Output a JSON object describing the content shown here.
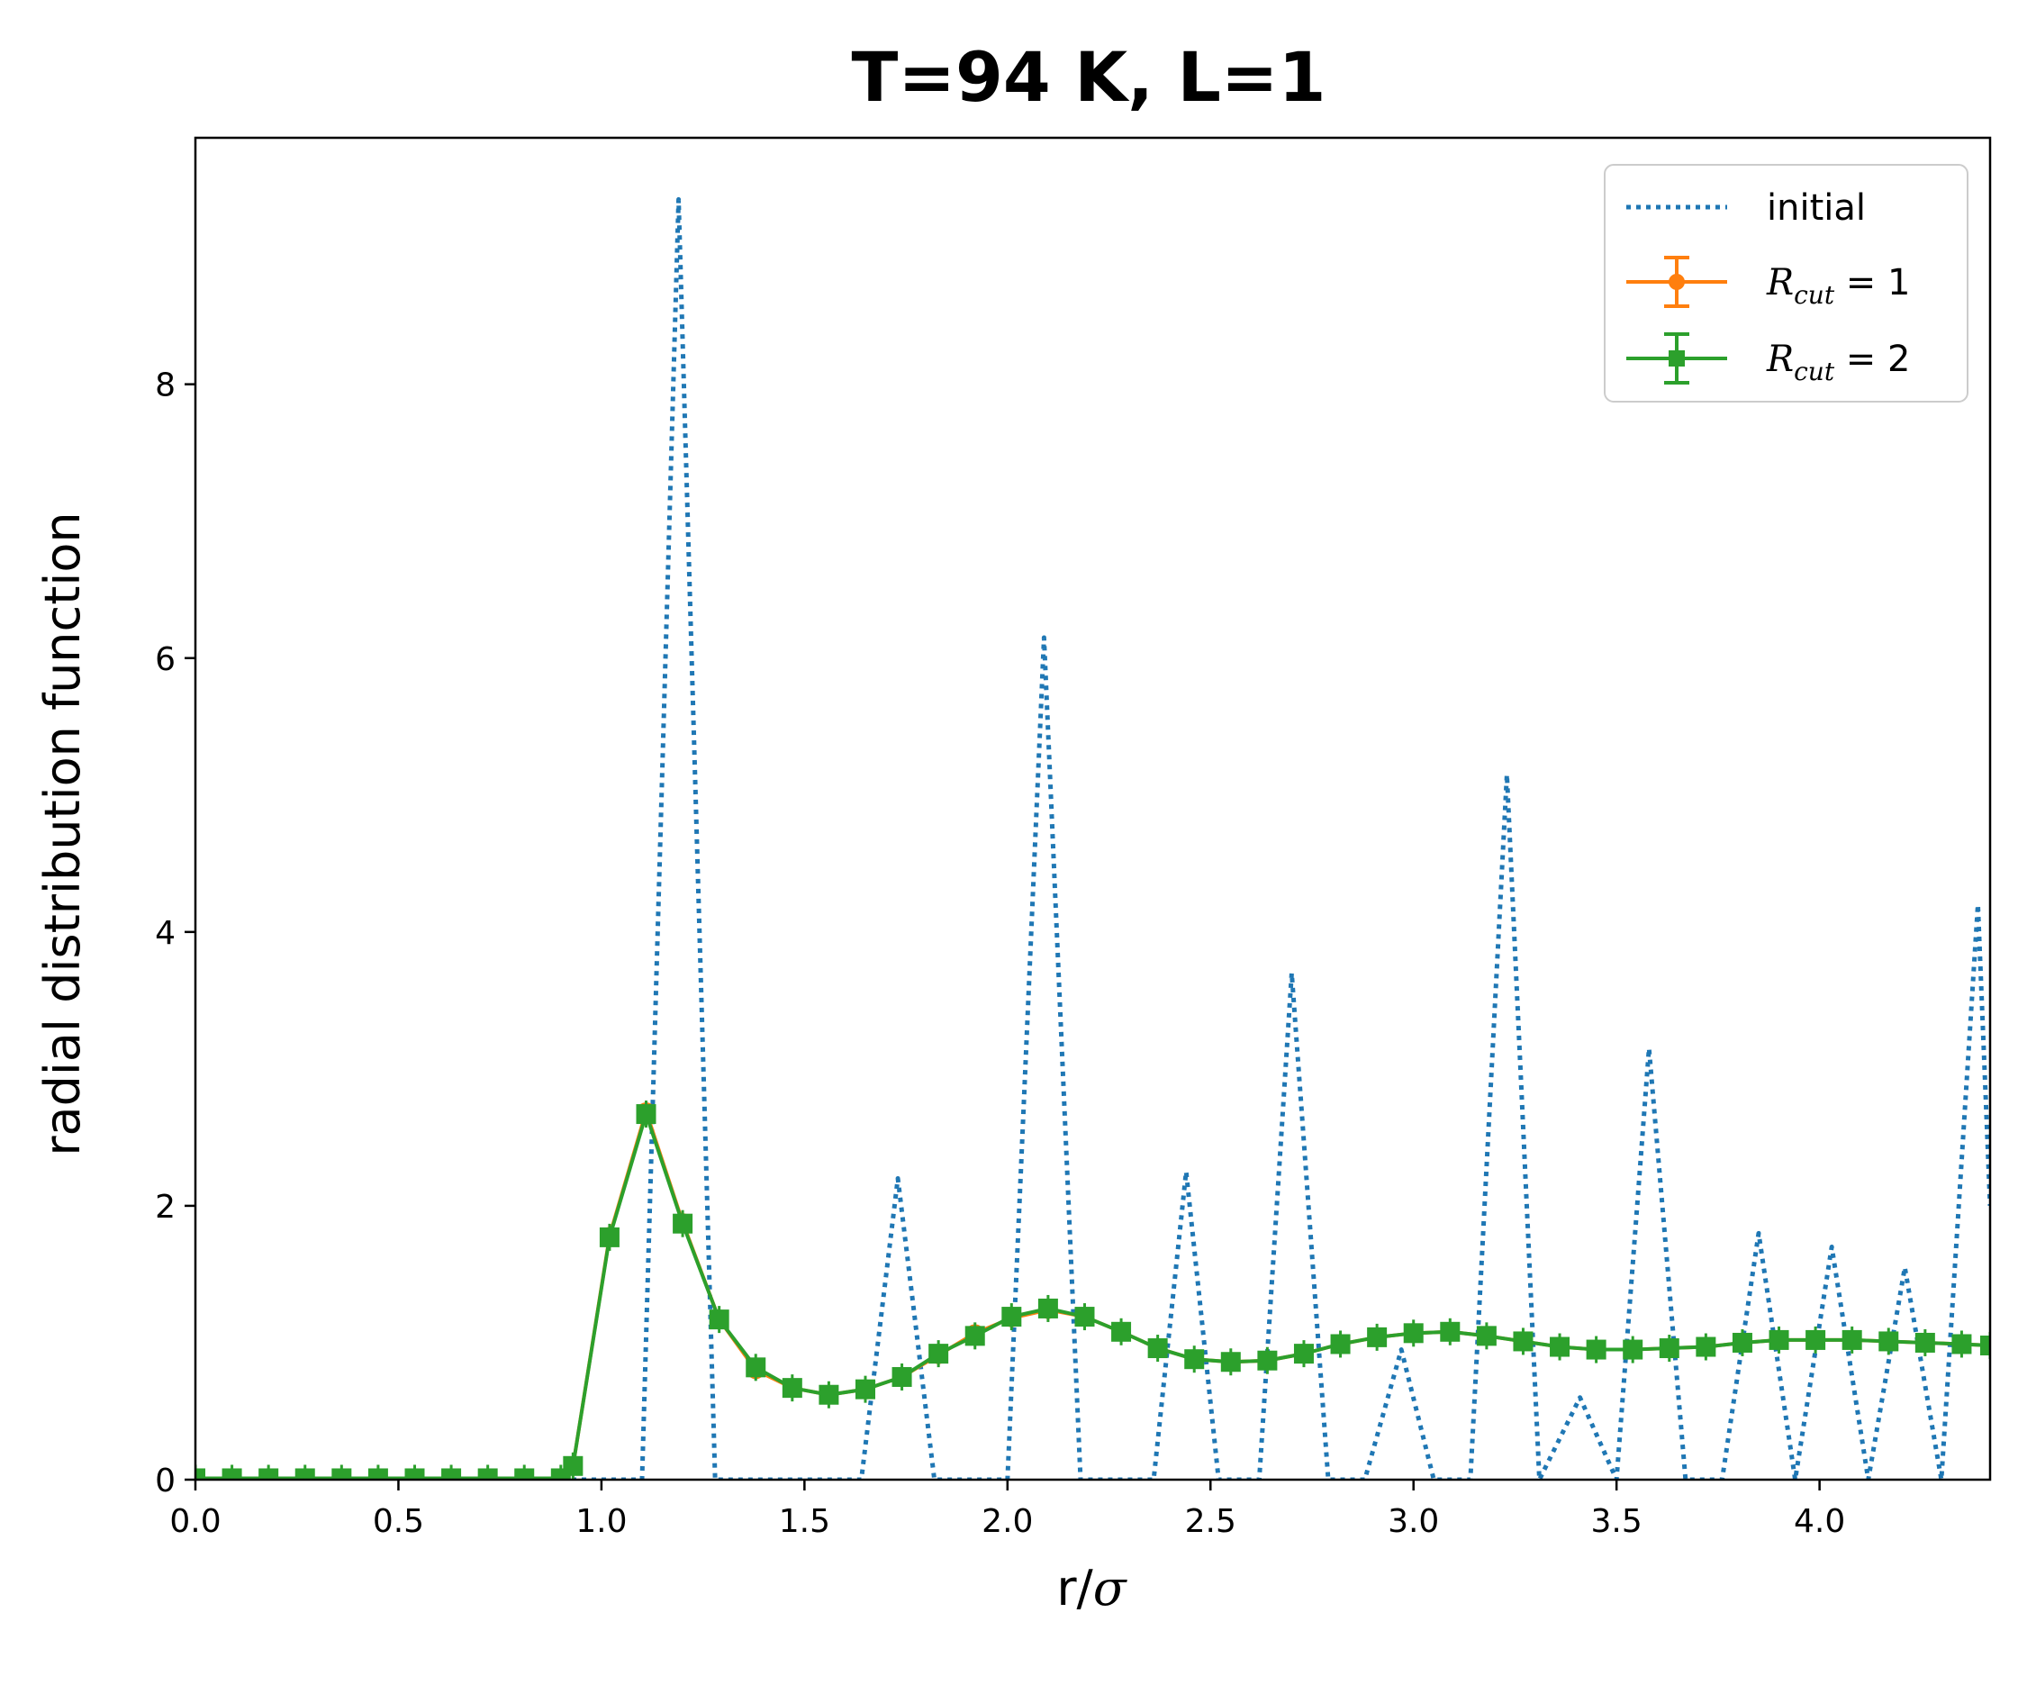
{
  "chart_data": {
    "type": "line",
    "title": "T=94 K, L=1",
    "xlabel_main": "r/",
    "xlabel_symbol": "σ",
    "ylabel": "radial distribution function",
    "xlim": [
      0.0,
      4.42
    ],
    "ylim": [
      0,
      9.8
    ],
    "xticks": [
      0.0,
      0.5,
      1.0,
      1.5,
      2.0,
      2.5,
      3.0,
      3.5,
      4.0
    ],
    "xtick_labels": [
      "0.0",
      "0.5",
      "1.0",
      "1.5",
      "2.0",
      "2.5",
      "3.0",
      "3.5",
      "4.0"
    ],
    "yticks": [
      0,
      2,
      4,
      6,
      8
    ],
    "ytick_labels": [
      "0",
      "2",
      "4",
      "6",
      "8"
    ],
    "grid": false,
    "legend_position": "top-right",
    "series": [
      {
        "name": "initial",
        "style": "dotted",
        "color": "#1f77b4",
        "x": [
          0.0,
          0.99,
          1.1,
          1.19,
          1.28,
          1.46,
          1.64,
          1.73,
          1.82,
          2.0,
          2.09,
          2.18,
          2.36,
          2.44,
          2.52,
          2.62,
          2.7,
          2.79,
          2.88,
          2.97,
          3.05,
          3.14,
          3.23,
          3.31,
          3.41,
          3.5,
          3.58,
          3.67,
          3.76,
          3.85,
          3.94,
          4.03,
          4.12,
          4.21,
          4.3,
          4.39,
          4.42
        ],
        "y": [
          0,
          0,
          0,
          9.35,
          0,
          0,
          0,
          2.2,
          0,
          0,
          6.15,
          0,
          0,
          2.25,
          0,
          0,
          3.7,
          0,
          0,
          0.95,
          0,
          0,
          5.15,
          0,
          0.6,
          0,
          3.15,
          0,
          0,
          1.8,
          0,
          1.7,
          0,
          1.55,
          0,
          4.2,
          2.0
        ]
      },
      {
        "name": "R",
        "name_subscript": "cut",
        "name_suffix": " = 1",
        "style": "solid",
        "marker": "circle",
        "color": "#ff7f0e",
        "x": [
          0.0,
          0.09,
          0.18,
          0.27,
          0.36,
          0.45,
          0.54,
          0.63,
          0.72,
          0.81,
          0.9,
          0.93,
          1.02,
          1.11,
          1.2,
          1.29,
          1.38,
          1.47,
          1.56,
          1.65,
          1.74,
          1.83,
          1.92,
          2.01,
          2.1,
          2.19,
          2.28,
          2.37,
          2.46,
          2.55,
          2.64,
          2.73,
          2.82,
          2.91,
          3.0,
          3.09,
          3.18,
          3.27,
          3.36,
          3.45,
          3.54,
          3.63,
          3.72,
          3.81,
          3.9,
          3.99,
          4.08,
          4.17,
          4.26,
          4.35,
          4.42
        ],
        "y": [
          0.01,
          0.01,
          0.01,
          0.01,
          0.01,
          0.01,
          0.01,
          0.01,
          0.01,
          0.01,
          0.01,
          0.1,
          1.78,
          2.69,
          1.88,
          1.17,
          0.8,
          0.67,
          0.62,
          0.66,
          0.75,
          0.91,
          1.07,
          1.18,
          1.24,
          1.19,
          1.08,
          0.96,
          0.88,
          0.86,
          0.87,
          0.92,
          0.99,
          1.04,
          1.07,
          1.08,
          1.05,
          1.01,
          0.97,
          0.95,
          0.95,
          0.96,
          0.97,
          1.0,
          1.02,
          1.02,
          1.02,
          1.01,
          1.0,
          0.99,
          0.98
        ]
      },
      {
        "name": "R",
        "name_subscript": "cut",
        "name_suffix": " = 2",
        "style": "solid",
        "marker": "square",
        "color": "#2ca02c",
        "x": [
          0.0,
          0.09,
          0.18,
          0.27,
          0.36,
          0.45,
          0.54,
          0.63,
          0.72,
          0.81,
          0.9,
          0.93,
          1.02,
          1.11,
          1.2,
          1.29,
          1.38,
          1.47,
          1.56,
          1.65,
          1.74,
          1.83,
          1.92,
          2.01,
          2.1,
          2.19,
          2.28,
          2.37,
          2.46,
          2.55,
          2.64,
          2.73,
          2.82,
          2.91,
          3.0,
          3.09,
          3.18,
          3.27,
          3.36,
          3.45,
          3.54,
          3.63,
          3.72,
          3.81,
          3.9,
          3.99,
          4.08,
          4.17,
          4.26,
          4.35,
          4.42
        ],
        "y": [
          0.01,
          0.01,
          0.01,
          0.01,
          0.01,
          0.01,
          0.01,
          0.01,
          0.01,
          0.01,
          0.01,
          0.1,
          1.77,
          2.67,
          1.87,
          1.17,
          0.82,
          0.67,
          0.62,
          0.66,
          0.75,
          0.92,
          1.05,
          1.19,
          1.25,
          1.19,
          1.08,
          0.96,
          0.88,
          0.86,
          0.87,
          0.92,
          0.99,
          1.04,
          1.07,
          1.08,
          1.05,
          1.01,
          0.97,
          0.95,
          0.95,
          0.96,
          0.97,
          1.0,
          1.02,
          1.02,
          1.02,
          1.01,
          1.0,
          0.99,
          0.98
        ]
      }
    ]
  }
}
